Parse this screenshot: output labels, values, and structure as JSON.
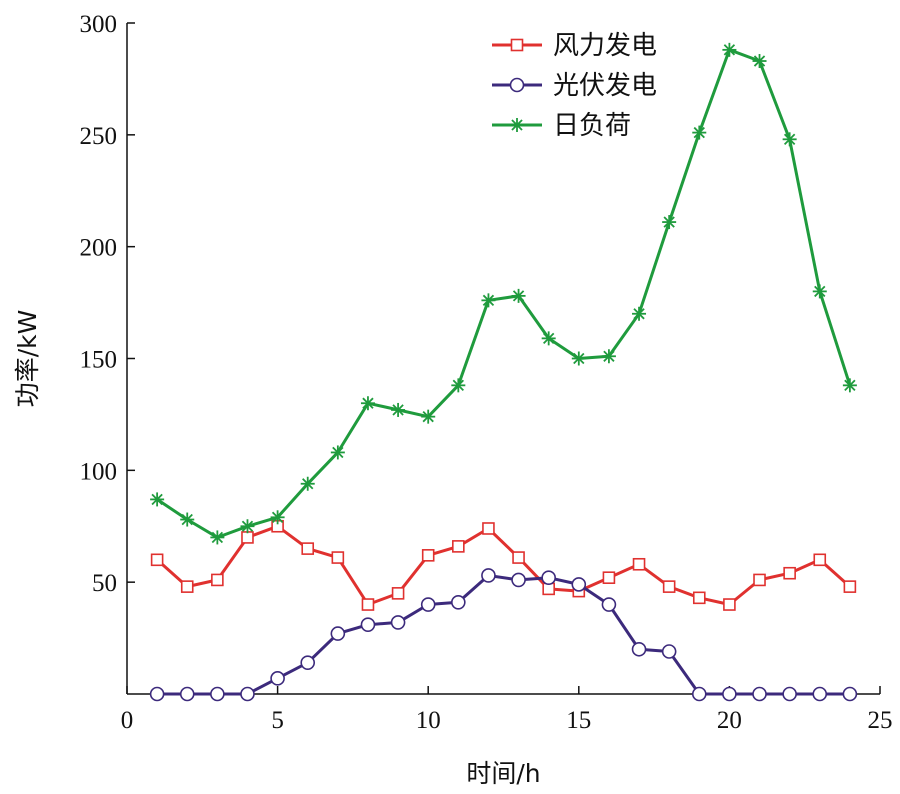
{
  "chart_data": {
    "type": "line",
    "xlabel": "时间/h",
    "ylabel": "功率/kW",
    "xlim": [
      0,
      25
    ],
    "ylim": [
      0,
      300
    ],
    "xticks": [
      0,
      5,
      10,
      15,
      20,
      25
    ],
    "yticks": [
      50,
      100,
      150,
      200,
      250,
      300
    ],
    "grid": false,
    "legend_position": "top-right",
    "x": [
      1,
      2,
      3,
      4,
      5,
      6,
      7,
      8,
      9,
      10,
      11,
      12,
      13,
      14,
      15,
      16,
      17,
      18,
      19,
      20,
      21,
      22,
      23,
      24
    ],
    "series": [
      {
        "name": "风力发电",
        "color": "#e0312f",
        "marker": "square",
        "values": [
          60,
          48,
          51,
          70,
          75,
          65,
          61,
          40,
          45,
          62,
          66,
          74,
          61,
          47,
          46,
          52,
          58,
          48,
          43,
          40,
          51,
          54,
          60,
          48
        ]
      },
      {
        "name": "光伏发电",
        "color": "#3c2a7c",
        "marker": "circle",
        "values": [
          0,
          0,
          0,
          0,
          7,
          14,
          27,
          31,
          32,
          40,
          41,
          53,
          51,
          52,
          49,
          40,
          20,
          19,
          0,
          0,
          0,
          0,
          0,
          0
        ]
      },
      {
        "name": "日负荷",
        "color": "#1f9b3d",
        "marker": "asterisk",
        "values": [
          87,
          78,
          70,
          75,
          79,
          94,
          108,
          130,
          127,
          124,
          138,
          176,
          178,
          159,
          150,
          151,
          170,
          211,
          251,
          288,
          283,
          248,
          180,
          138
        ]
      }
    ]
  }
}
